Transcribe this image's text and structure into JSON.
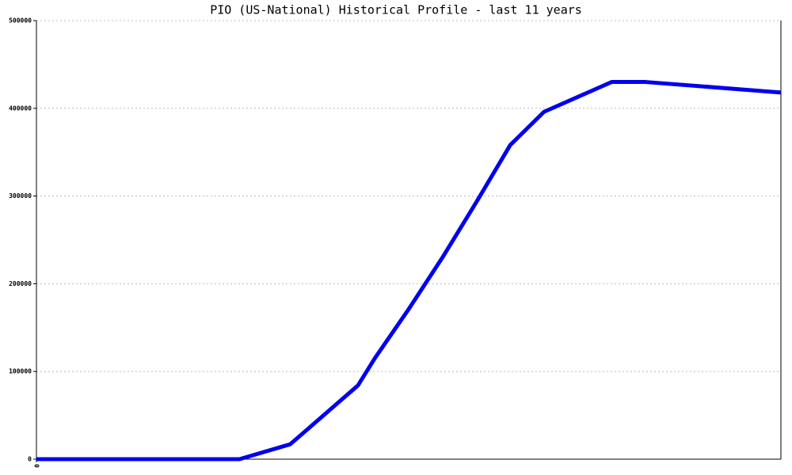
{
  "chart_data": {
    "type": "line",
    "title": "PIO (US-National) Historical Profile - last 11 years",
    "x": [
      0,
      12,
      15,
      19,
      20,
      22,
      24,
      26,
      28,
      30,
      34,
      36,
      44
    ],
    "series": [
      {
        "name": "PIO",
        "color": "#0000ee",
        "values": [
          0,
          0,
          17000,
          84000,
          115000,
          171000,
          230000,
          293000,
          358000,
          396000,
          430000,
          430000,
          418000
        ]
      }
    ],
    "xlim": [
      0,
      44
    ],
    "xticks": [
      0
    ],
    "ylim": [
      0,
      500000
    ],
    "yticks": [
      0,
      100000,
      200000,
      300000,
      400000,
      500000
    ],
    "grid": true
  }
}
